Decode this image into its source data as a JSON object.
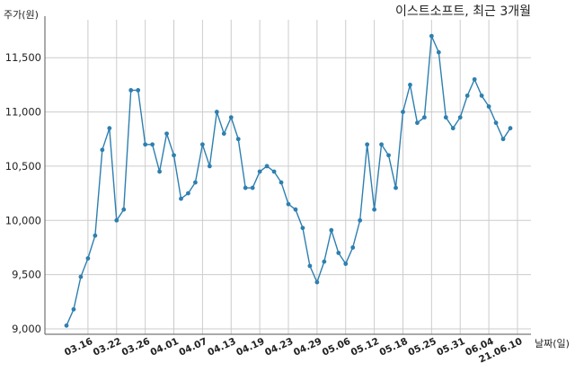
{
  "chart_data": {
    "type": "line",
    "title": "이스트소프트, 최근 3개월",
    "ylabel": "주가(원)",
    "xlabel": "날짜(일)",
    "ylim": [
      8950,
      11850
    ],
    "grid": true,
    "y_ticks": [
      9000,
      9500,
      10000,
      10500,
      11000,
      11500
    ],
    "y_tick_labels": [
      "9,000",
      "9,500",
      "10,000",
      "10,500",
      "11,000",
      "11,500"
    ],
    "x_ticks": [
      {
        "label": "03.16",
        "index": 3
      },
      {
        "label": "03.22",
        "index": 7
      },
      {
        "label": "03.26",
        "index": 11
      },
      {
        "label": "04.01",
        "index": 15
      },
      {
        "label": "04.07",
        "index": 19
      },
      {
        "label": "04.13",
        "index": 23
      },
      {
        "label": "04.19",
        "index": 27
      },
      {
        "label": "04.23",
        "index": 31
      },
      {
        "label": "04.29",
        "index": 35
      },
      {
        "label": "05.06",
        "index": 39
      },
      {
        "label": "05.12",
        "index": 43
      },
      {
        "label": "05.18",
        "index": 47
      },
      {
        "label": "05.25",
        "index": 51
      },
      {
        "label": "05.31",
        "index": 55
      },
      {
        "label": "06.04",
        "index": 59
      },
      {
        "label": "21.06.10",
        "index": 63
      }
    ],
    "series": [
      {
        "color": "#2e7fb0",
        "values": [
          9030,
          9180,
          9480,
          9650,
          9860,
          10650,
          10850,
          10000,
          10100,
          11200,
          11200,
          10700,
          10700,
          10450,
          10800,
          10600,
          10200,
          10250,
          10350,
          10700,
          10500,
          11000,
          10800,
          10950,
          10750,
          10300,
          10300,
          10450,
          10500,
          10450,
          10350,
          10150,
          10100,
          9930,
          9580,
          9430,
          9620,
          9910,
          9700,
          9600,
          9750,
          10000,
          10700,
          10100,
          10700,
          10600,
          10300,
          11000,
          11250,
          10900,
          10950,
          11700,
          11550,
          10950,
          10850,
          10950,
          11150,
          11300,
          11150,
          11050,
          10900,
          10750,
          10850
        ]
      }
    ]
  }
}
